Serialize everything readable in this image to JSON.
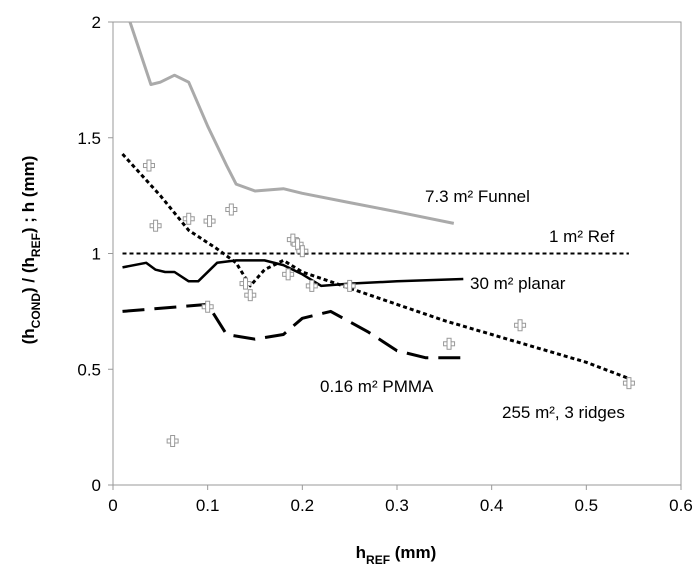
{
  "chart_data": {
    "type": "line",
    "xlabel": "h",
    "xlabel_sub": "REF",
    "xlabel_unit": " (mm)",
    "ylabel_parts": [
      "(h",
      "COND",
      ") / (h",
      "REF",
      ") ; h (mm)"
    ],
    "xlim": [
      0,
      0.6
    ],
    "ylim": [
      0,
      2
    ],
    "xticks": [
      0,
      0.1,
      0.2,
      0.3,
      0.4,
      0.5,
      0.6
    ],
    "xtick_labels": [
      "0",
      "0.1",
      "0.2",
      "0.3",
      "0.4",
      "0.5",
      "0.6"
    ],
    "yticks": [
      0,
      0.5,
      1,
      1.5,
      2
    ],
    "ytick_labels": [
      "0",
      "0.5",
      "1",
      "1.5",
      "2"
    ],
    "grid": false,
    "legend": "none",
    "series": [
      {
        "id": "funnel",
        "label": "7.3 m² Funnel",
        "style": "solid",
        "color": "#aaaaaa",
        "x": [
          0.018,
          0.04,
          0.05,
          0.065,
          0.08,
          0.1,
          0.12,
          0.13,
          0.15,
          0.18,
          0.2,
          0.25,
          0.3,
          0.36
        ],
        "y": [
          2.0,
          1.73,
          1.74,
          1.77,
          1.74,
          1.55,
          1.38,
          1.3,
          1.27,
          1.28,
          1.26,
          1.22,
          1.18,
          1.13
        ]
      },
      {
        "id": "ref",
        "label": "1 m² Ref",
        "style": "dotted",
        "color": "#000000",
        "x": [
          0.01,
          0.545
        ],
        "y": [
          1.0,
          1.0
        ]
      },
      {
        "id": "planar",
        "label": "30 m² planar",
        "style": "solid",
        "color": "#000000",
        "x": [
          0.01,
          0.035,
          0.045,
          0.055,
          0.065,
          0.08,
          0.09,
          0.11,
          0.13,
          0.16,
          0.18,
          0.2,
          0.22,
          0.25,
          0.3,
          0.37
        ],
        "y": [
          0.94,
          0.96,
          0.93,
          0.92,
          0.92,
          0.88,
          0.88,
          0.96,
          0.97,
          0.97,
          0.95,
          0.91,
          0.86,
          0.87,
          0.88,
          0.89
        ]
      },
      {
        "id": "pmma",
        "label": "0.16 m² PMMA",
        "style": "dashed",
        "color": "#000000",
        "x": [
          0.01,
          0.1,
          0.12,
          0.15,
          0.18,
          0.2,
          0.23,
          0.27,
          0.3,
          0.33,
          0.37
        ],
        "y": [
          0.75,
          0.78,
          0.65,
          0.63,
          0.65,
          0.72,
          0.75,
          0.66,
          0.58,
          0.55,
          0.55
        ]
      },
      {
        "id": "ridges",
        "label": "255 m², 3 ridges",
        "style": "dotted",
        "color": "#000000",
        "x": [
          0.01,
          0.05,
          0.08,
          0.11,
          0.13,
          0.145,
          0.16,
          0.18,
          0.2,
          0.25,
          0.3,
          0.35,
          0.4,
          0.45,
          0.5,
          0.545
        ],
        "y": [
          1.43,
          1.25,
          1.1,
          1.02,
          0.96,
          0.86,
          0.93,
          0.97,
          0.92,
          0.85,
          0.78,
          0.71,
          0.65,
          0.59,
          0.53,
          0.46
        ]
      }
    ],
    "scatter": {
      "marker": "cross",
      "color": "#999999",
      "x": [
        0.038,
        0.045,
        0.063,
        0.08,
        0.1,
        0.102,
        0.125,
        0.14,
        0.145,
        0.185,
        0.19,
        0.195,
        0.2,
        0.21,
        0.25,
        0.355,
        0.43,
        0.545
      ],
      "y": [
        1.38,
        1.12,
        0.19,
        1.15,
        0.77,
        1.14,
        1.19,
        0.87,
        0.82,
        0.91,
        1.06,
        1.04,
        1.01,
        0.86,
        0.86,
        0.61,
        0.69,
        0.44
      ]
    },
    "annotations": [
      {
        "text": "7.3 m² Funnel",
        "series": "funnel"
      },
      {
        "text": "1 m² Ref",
        "series": "ref"
      },
      {
        "text": "30 m² planar",
        "series": "planar"
      },
      {
        "text": "0.16 m² PMMA",
        "series": "pmma"
      },
      {
        "text": "255 m², 3 ridges",
        "series": "ridges"
      }
    ]
  }
}
